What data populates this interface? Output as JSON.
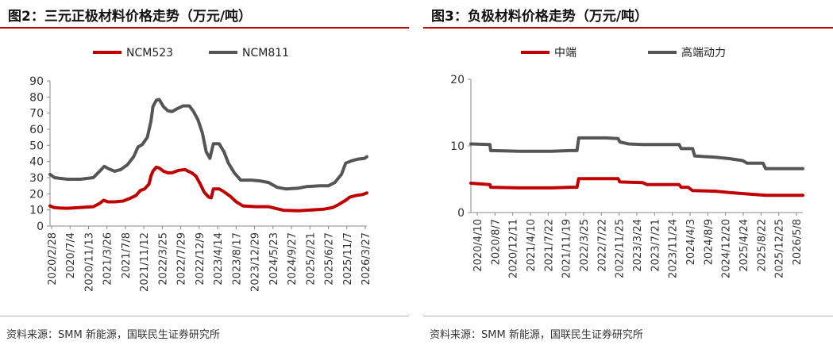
{
  "chart_data": [
    {
      "type": "line",
      "title": "图2：三元正极材料价格走势（万元/吨）",
      "source": "资料来源：SMM 新能源，国联民生证券研究所",
      "ylim": [
        0,
        90
      ],
      "yticks": [
        0,
        10,
        20,
        30,
        40,
        50,
        60,
        70,
        80,
        90
      ],
      "xlim": [
        "2020/2/28",
        "2026/5/1"
      ],
      "x_tick_labels": [
        "2020/2/28",
        "2020/7/4",
        "2020/11/13",
        "2021/3/26",
        "2021/7/8",
        "2021/11/12",
        "2022/3/25",
        "2022/7/29",
        "2022/12/9",
        "2023/4/14",
        "2023/8/17",
        "2023/12/29",
        "2024/5/23",
        "2024/9/27",
        "2025/2/21",
        "2025/6/27",
        "2025/11/7",
        "2026/3/27"
      ],
      "legend_position": "top",
      "grid": false,
      "series": [
        {
          "name": "NCM523",
          "color": "#c00000",
          "points": [
            [
              "2020/2/28",
              12.5
            ],
            [
              "2020/3/25",
              11.5
            ],
            [
              "2020/5/1",
              11.2
            ],
            [
              "2020/7/1",
              11.0
            ],
            [
              "2020/10/1",
              11.5
            ],
            [
              "2021/1/1",
              12.0
            ],
            [
              "2021/2/15",
              14.0
            ],
            [
              "2021/3/15",
              16.0
            ],
            [
              "2021/4/15",
              15.0
            ],
            [
              "2021/6/1",
              15.0
            ],
            [
              "2021/8/1",
              15.5
            ],
            [
              "2021/9/15",
              17.0
            ],
            [
              "2021/11/1",
              19.0
            ],
            [
              "2021/12/1",
              22.0
            ],
            [
              "2022/1/1",
              23.0
            ],
            [
              "2022/2/1",
              26.0
            ],
            [
              "2022/2/15",
              31.0
            ],
            [
              "2022/3/1",
              34.0
            ],
            [
              "2022/3/25",
              36.5
            ],
            [
              "2022/4/15",
              36.0
            ],
            [
              "2022/5/15",
              34.0
            ],
            [
              "2022/6/15",
              33.0
            ],
            [
              "2022/7/15",
              33.0
            ],
            [
              "2022/9/1",
              34.5
            ],
            [
              "2022/10/15",
              35.0
            ],
            [
              "2022/12/1",
              33.0
            ],
            [
              "2023/1/1",
              31.0
            ],
            [
              "2023/2/1",
              26.0
            ],
            [
              "2023/3/1",
              21.0
            ],
            [
              "2023/4/1",
              18.0
            ],
            [
              "2023/4/20",
              17.5
            ],
            [
              "2023/5/5",
              23.0
            ],
            [
              "2023/6/15",
              23.0
            ],
            [
              "2023/7/15",
              21.5
            ],
            [
              "2023/9/1",
              18.5
            ],
            [
              "2023/10/15",
              15.0
            ],
            [
              "2023/12/1",
              12.5
            ],
            [
              "2024/3/1",
              12.0
            ],
            [
              "2024/6/1",
              12.0
            ],
            [
              "2024/7/15",
              11.0
            ],
            [
              "2024/9/15",
              9.8
            ],
            [
              "2025/1/1",
              9.5
            ],
            [
              "2025/4/1",
              10.0
            ],
            [
              "2025/7/1",
              10.5
            ],
            [
              "2025/9/1",
              11.5
            ],
            [
              "2025/10/15",
              13.5
            ],
            [
              "2025/12/1",
              16.0
            ],
            [
              "2026/1/1",
              18.0
            ],
            [
              "2026/2/15",
              19.0
            ],
            [
              "2026/4/1",
              19.5
            ],
            [
              "2026/5/1",
              20.5
            ]
          ]
        },
        {
          "name": "NCM811",
          "color": "#555555",
          "points": [
            [
              "2020/2/28",
              32.0
            ],
            [
              "2020/4/1",
              30.0
            ],
            [
              "2020/5/15",
              29.5
            ],
            [
              "2020/7/1",
              29.0
            ],
            [
              "2020/10/1",
              29.0
            ],
            [
              "2021/1/1",
              30.0
            ],
            [
              "2021/2/15",
              34.0
            ],
            [
              "2021/3/20",
              37.0
            ],
            [
              "2021/4/20",
              35.5
            ],
            [
              "2021/6/1",
              34.0
            ],
            [
              "2021/7/15",
              35.0
            ],
            [
              "2021/9/1",
              38.0
            ],
            [
              "2021/10/15",
              43.0
            ],
            [
              "2021/11/15",
              49.0
            ],
            [
              "2021/12/15",
              50.5
            ],
            [
              "2022/1/20",
              55.0
            ],
            [
              "2022/2/15",
              65.0
            ],
            [
              "2022/3/1",
              74.0
            ],
            [
              "2022/3/25",
              78.0
            ],
            [
              "2022/4/15",
              78.5
            ],
            [
              "2022/5/15",
              74.0
            ],
            [
              "2022/6/15",
              71.5
            ],
            [
              "2022/7/15",
              71.0
            ],
            [
              "2022/8/15",
              72.5
            ],
            [
              "2022/10/1",
              74.5
            ],
            [
              "2022/11/15",
              74.5
            ],
            [
              "2022/12/15",
              71.0
            ],
            [
              "2023/1/15",
              66.0
            ],
            [
              "2023/2/15",
              58.0
            ],
            [
              "2023/3/15",
              46.0
            ],
            [
              "2023/4/10",
              42.0
            ],
            [
              "2023/5/5",
              51.0
            ],
            [
              "2023/6/15",
              51.0
            ],
            [
              "2023/7/20",
              46.0
            ],
            [
              "2023/8/20",
              39.0
            ],
            [
              "2023/10/1",
              33.0
            ],
            [
              "2023/11/15",
              28.5
            ],
            [
              "2024/2/1",
              28.5
            ],
            [
              "2024/4/1",
              28.0
            ],
            [
              "2024/6/1",
              27.0
            ],
            [
              "2024/8/1",
              24.0
            ],
            [
              "2024/10/1",
              23.0
            ],
            [
              "2025/1/1",
              23.5
            ],
            [
              "2025/3/1",
              24.5
            ],
            [
              "2025/6/1",
              25.0
            ],
            [
              "2025/8/1",
              25.0
            ],
            [
              "2025/9/15",
              27.0
            ],
            [
              "2025/11/1",
              32.0
            ],
            [
              "2025/12/1",
              39.0
            ],
            [
              "2026/1/15",
              40.5
            ],
            [
              "2026/3/1",
              41.5
            ],
            [
              "2026/4/15",
              42.0
            ],
            [
              "2026/5/1",
              43.0
            ]
          ]
        }
      ]
    },
    {
      "type": "line",
      "title": "图3：负极材料价格走势（万元/吨）",
      "source": "资料来源：SMM 新能源，国联民生证券研究所",
      "ylim": [
        0,
        20
      ],
      "yticks": [
        0,
        10,
        20
      ],
      "xlim": [
        "2020/4/10",
        "2026/5/8"
      ],
      "x_tick_labels": [
        "2020/4/10",
        "2020/8/7",
        "2020/12/11",
        "2021/4/10",
        "2021/7/22",
        "2021/11/19",
        "2022/3/25",
        "2022/7/22",
        "2022/11/25",
        "2023/3/24",
        "2023/7/21",
        "2023/11/24",
        "2024/4/3",
        "2024/8/9",
        "2024/12/20",
        "2025/4/24",
        "2025/8/22",
        "2025/12/25",
        "2026/5/8"
      ],
      "legend_position": "top",
      "grid": false,
      "series": [
        {
          "name": "中端",
          "color": "#c00000",
          "points": [
            [
              "2020/4/10",
              4.4
            ],
            [
              "2020/8/15",
              4.2
            ],
            [
              "2020/8/20",
              3.8
            ],
            [
              "2021/3/1",
              3.7
            ],
            [
              "2021/10/1",
              3.7
            ],
            [
              "2022/2/1",
              3.8
            ],
            [
              "2022/3/20",
              3.8
            ],
            [
              "2022/4/1",
              5.1
            ],
            [
              "2022/10/1",
              5.1
            ],
            [
              "2022/12/20",
              5.1
            ],
            [
              "2023/1/1",
              4.6
            ],
            [
              "2023/6/1",
              4.5
            ],
            [
              "2023/7/1",
              4.2
            ],
            [
              "2024/2/1",
              4.2
            ],
            [
              "2024/2/15",
              3.8
            ],
            [
              "2024/4/1",
              3.8
            ],
            [
              "2024/5/1",
              3.3
            ],
            [
              "2024/10/1",
              3.2
            ],
            [
              "2025/1/1",
              3.0
            ],
            [
              "2025/5/1",
              2.8
            ],
            [
              "2025/9/1",
              2.6
            ],
            [
              "2026/5/8",
              2.6
            ]
          ]
        },
        {
          "name": "高端动力",
          "color": "#555555",
          "points": [
            [
              "2020/4/10",
              10.3
            ],
            [
              "2020/8/15",
              10.2
            ],
            [
              "2020/8/20",
              9.3
            ],
            [
              "2021/3/1",
              9.2
            ],
            [
              "2021/10/1",
              9.2
            ],
            [
              "2022/2/1",
              9.3
            ],
            [
              "2022/3/20",
              9.3
            ],
            [
              "2022/4/1",
              11.2
            ],
            [
              "2022/10/1",
              11.2
            ],
            [
              "2022/12/20",
              11.1
            ],
            [
              "2023/1/1",
              10.6
            ],
            [
              "2023/3/1",
              10.3
            ],
            [
              "2023/6/1",
              10.2
            ],
            [
              "2024/2/1",
              10.2
            ],
            [
              "2024/2/15",
              9.6
            ],
            [
              "2024/5/1",
              9.6
            ],
            [
              "2024/5/15",
              8.5
            ],
            [
              "2024/10/1",
              8.3
            ],
            [
              "2025/1/1",
              8.1
            ],
            [
              "2025/4/1",
              7.8
            ],
            [
              "2025/5/1",
              7.4
            ],
            [
              "2025/8/15",
              7.4
            ],
            [
              "2025/9/1",
              6.6
            ],
            [
              "2026/5/8",
              6.6
            ]
          ]
        }
      ]
    }
  ]
}
